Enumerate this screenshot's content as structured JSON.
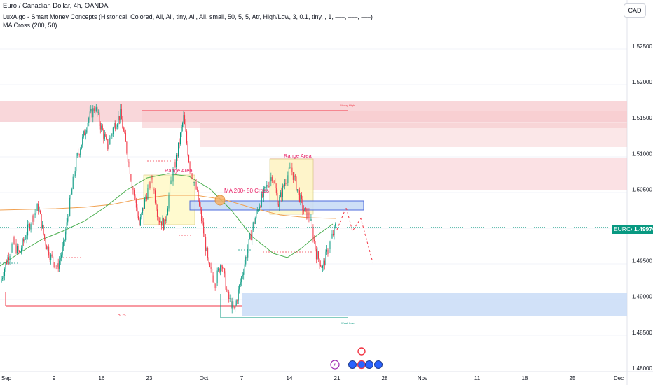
{
  "header": {
    "title": "Euro / Canadian Dollar, 4h, OANDA",
    "indicator_1": "LuxAlgo - Smart Money Concepts (Historical, Colored, All, All, tiny, All, All, small, 50, 5, 5, Atr, High/Low, 3, 0.1, tiny, , 1, ⎯⎯⎯, ⎯⎯⎯, ⎯⎯⎯)",
    "indicator_2": "MA Cross (200, 50)",
    "currency_button": "CAD"
  },
  "price_tag": {
    "symbol": "EURCAD",
    "price": "1.49970",
    "color": "#089981"
  },
  "colors": {
    "up": "#089981",
    "down": "#f23645",
    "supply_zone": "#f7c9cd",
    "demand_zone": "#c9dcf7",
    "range_zone": "#fff9c4",
    "ma200": "#f0a050",
    "ma50": "#4caf50"
  },
  "annotations": {
    "range_area_1": "Range Area",
    "range_area_2": "Range Area",
    "ma_cross": "MA 200- 50 Cross",
    "bos_bottom": "BOS",
    "strong_high": "Strong High",
    "weak_low": "Weak Low"
  },
  "chart_data": {
    "type": "candlestick",
    "symbol": "EURCAD",
    "timeframe": "4h",
    "y_axis": {
      "ticks": [
        "1.52500",
        "1.52000",
        "1.51500",
        "1.51000",
        "1.50500",
        "1.49500",
        "1.49000",
        "1.48500",
        "1.48000"
      ],
      "range": [
        1.4795,
        1.5295
      ],
      "last_price": 1.4997
    },
    "x_axis": {
      "ticks": [
        "Sep",
        "9",
        "16",
        "23",
        "Oct",
        "7",
        "14",
        "21",
        "28",
        "Nov",
        "11",
        "18",
        "25",
        "Dec"
      ]
    },
    "price_path": [
      [
        1.492,
        1.495,
        1.4975,
        1.496,
        1.4985,
        1.501,
        1.5025,
        1.498,
        1.4955,
        1.494,
        1.497,
        1.503,
        1.509,
        1.512,
        1.515,
        1.5165,
        1.5135,
        1.511,
        1.514,
        1.5155,
        1.5105,
        1.505,
        1.5,
        1.504,
        1.5065,
        1.501,
        1.5,
        1.506,
        1.51,
        1.515,
        1.508,
        1.505,
        1.5,
        1.494,
        1.492,
        1.495,
        1.49,
        1.488,
        1.492,
        1.496,
        1.5,
        1.503,
        1.505,
        1.507,
        1.503,
        1.506,
        1.508,
        1.505,
        1.502,
        1.501,
        1.496,
        1.494,
        1.497,
        1.4997
      ]
    ]
  }
}
